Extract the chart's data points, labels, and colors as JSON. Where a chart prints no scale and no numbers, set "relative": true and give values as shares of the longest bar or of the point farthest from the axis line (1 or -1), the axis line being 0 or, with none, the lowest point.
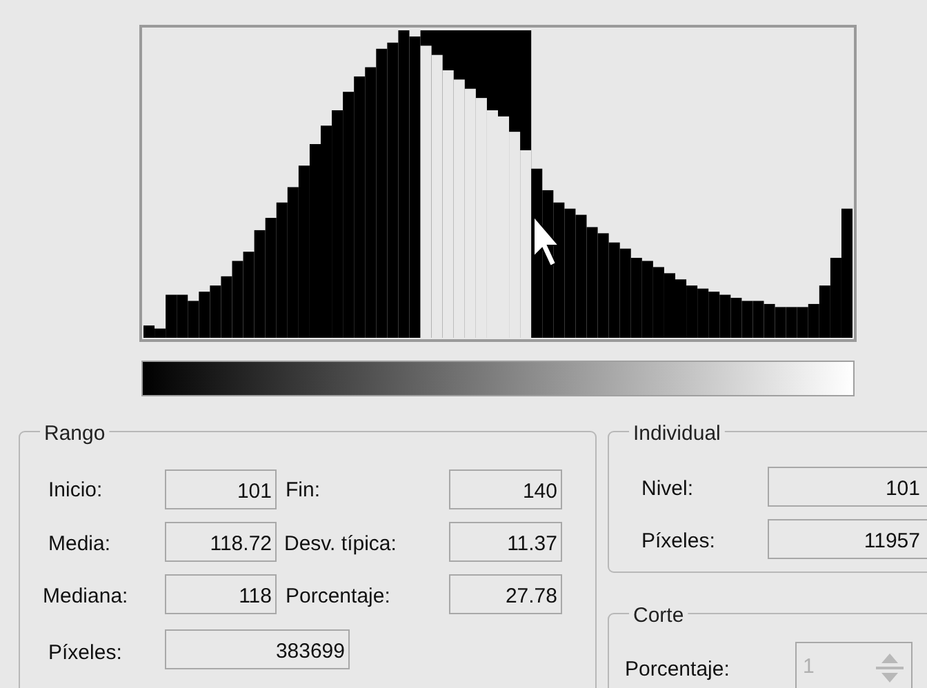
{
  "chart_data": [
    {
      "type": "bar",
      "relative": true,
      "categories": [
        null,
        null,
        null,
        null,
        null,
        null,
        null,
        null,
        null,
        null,
        null,
        null,
        null,
        null,
        null,
        null,
        null,
        null,
        null,
        null,
        null,
        null,
        null,
        null,
        null,
        null,
        null,
        null,
        null,
        null,
        null,
        null,
        null,
        null,
        null,
        null,
        null,
        null,
        null,
        null,
        null,
        null,
        null,
        null,
        null,
        null,
        null,
        null,
        null,
        null,
        null,
        null,
        null,
        null,
        null,
        null,
        null,
        null,
        null,
        null,
        null,
        null,
        null,
        null
      ],
      "values": [
        0.04,
        0.03,
        0.14,
        0.14,
        0.12,
        0.15,
        0.17,
        0.2,
        0.25,
        0.28,
        0.35,
        0.39,
        0.44,
        0.49,
        0.56,
        0.63,
        0.69,
        0.74,
        0.8,
        0.85,
        0.88,
        0.94,
        0.96,
        1,
        0.98,
        0.95,
        0.92,
        0.87,
        0.84,
        0.81,
        0.78,
        0.74,
        0.72,
        0.67,
        0.61,
        0.55,
        0.48,
        0.44,
        0.42,
        0.4,
        0.36,
        0.34,
        0.31,
        0.29,
        0.26,
        0.25,
        0.23,
        0.21,
        0.19,
        0.17,
        0.16,
        0.15,
        0.14,
        0.13,
        0.12,
        0.12,
        0.11,
        0.1,
        0.1,
        0.1,
        0.11,
        0.17,
        0.26,
        0.42
      ],
      "colors": [
        "#000000",
        "#000000",
        "#000000",
        "#000000",
        "#000000",
        "#000000",
        "#000000",
        "#000000",
        "#000000",
        "#000000",
        "#000000",
        "#000000",
        "#000000",
        "#000000",
        "#000000",
        "#000000",
        "#000000",
        "#000000",
        "#000000",
        "#000000",
        "#000000",
        "#000000",
        "#000000",
        "#000000",
        "#000000",
        "#e8e8e8",
        "#e8e8e8",
        "#e8e8e8",
        "#e8e8e8",
        "#e8e8e8",
        "#e8e8e8",
        "#e8e8e8",
        "#e8e8e8",
        "#e8e8e8",
        "#e8e8e8",
        "#000000",
        "#000000",
        "#000000",
        "#000000",
        "#000000",
        "#000000",
        "#000000",
        "#000000",
        "#000000",
        "#000000",
        "#000000",
        "#000000",
        "#000000",
        "#000000",
        "#000000",
        "#000000",
        "#000000",
        "#000000",
        "#000000",
        "#000000",
        "#000000",
        "#000000",
        "#000000",
        "#000000",
        "#000000",
        "#000000",
        "#000000",
        "#000000",
        "#000000"
      ]
    },
    {
      "type": "other",
      "annotations": [
        "Rango",
        "Inicio:",
        "101",
        "Fin:",
        "140",
        "Media:",
        "118.72",
        "Desv. típica:",
        "11.37",
        "Mediana:",
        "118",
        "Porcentaje:",
        "27.78",
        "Píxeles:",
        "383699",
        "Individual",
        "Nivel:",
        "101",
        "Píxeles:",
        "11957",
        "Corte",
        "Porcentaje:",
        "1"
      ]
    }
  ]
}
